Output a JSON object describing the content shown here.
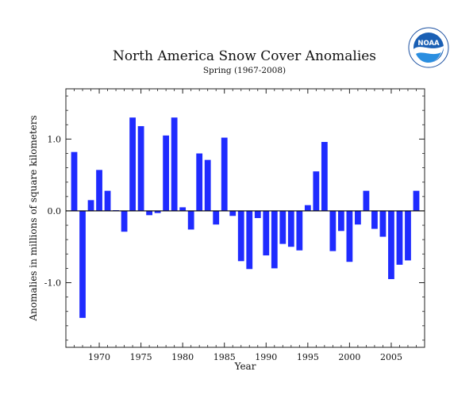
{
  "logo": {
    "text": "NOAA",
    "colors": {
      "sky": "#1a5fb4",
      "water": "#2a8ee0",
      "ring": "#1a4fa0"
    }
  },
  "chart_data": {
    "type": "bar",
    "title": "North America Snow Cover Anomalies",
    "subtitle": "Spring (1967-2008)",
    "xlabel": "Year",
    "ylabel": "Anomalies in millions of square kilometers",
    "x": [
      1967,
      1968,
      1969,
      1970,
      1971,
      1972,
      1973,
      1974,
      1975,
      1976,
      1977,
      1978,
      1979,
      1980,
      1981,
      1982,
      1983,
      1984,
      1985,
      1986,
      1987,
      1988,
      1989,
      1990,
      1991,
      1992,
      1993,
      1994,
      1995,
      1996,
      1997,
      1998,
      1999,
      2000,
      2001,
      2002,
      2003,
      2004,
      2005,
      2006,
      2007,
      2008
    ],
    "values": [
      0.82,
      -1.49,
      0.15,
      0.57,
      0.28,
      0.01,
      -0.29,
      1.3,
      1.18,
      -0.06,
      -0.03,
      1.05,
      1.3,
      0.05,
      -0.26,
      0.8,
      0.71,
      -0.19,
      1.02,
      -0.07,
      -0.7,
      -0.81,
      -0.1,
      -0.62,
      -0.8,
      -0.46,
      -0.5,
      -0.55,
      0.08,
      0.55,
      0.96,
      -0.56,
      -0.28,
      -0.71,
      -0.19,
      0.28,
      -0.25,
      -0.36,
      -0.95,
      -0.75,
      -0.69,
      0.28
    ],
    "xlim": [
      1966,
      2009
    ],
    "ylim": [
      -1.9,
      1.7
    ],
    "xticks": [
      1970,
      1975,
      1980,
      1985,
      1990,
      1995,
      2000,
      2005
    ],
    "xtick_labels": [
      "1970",
      "1975",
      "1980",
      "1985",
      "1990",
      "1995",
      "2000",
      "2005"
    ],
    "yticks": [
      1.0,
      0.0,
      -1.0
    ],
    "ytick_labels": [
      "1.0",
      "0.0",
      "-1.0"
    ],
    "bar_color": "#1f2bff",
    "zero_line": true,
    "grid": false
  }
}
